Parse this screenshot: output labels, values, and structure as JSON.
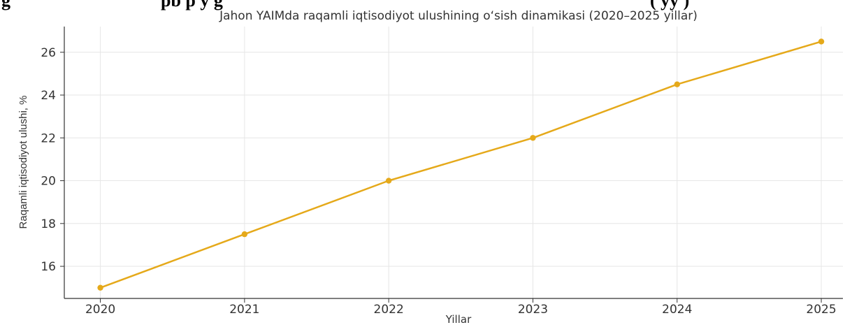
{
  "page_heading": {
    "left_text": "g",
    "middle_text": "pb p y g",
    "right_text": "( yy )"
  },
  "chart_data": {
    "type": "line",
    "title": "Jahon YAIMda raqamli iqtisodiyot ulushining o‘sish dinamikasi (2020–2025 yillar)",
    "xlabel": "Yillar",
    "ylabel": "Raqamli iqtisodiyot ulushi, %",
    "x": [
      2020,
      2021,
      2022,
      2023,
      2024,
      2025
    ],
    "x_tick_labels": [
      "2020",
      "2021",
      "2022",
      "2023",
      "2024",
      "2025"
    ],
    "y_ticks": [
      16,
      18,
      20,
      22,
      24,
      26
    ],
    "y_tick_labels": [
      "16",
      "18",
      "20",
      "22",
      "24",
      "26"
    ],
    "xlim": [
      2019.75,
      2025.15
    ],
    "ylim": [
      14.5,
      27.2
    ],
    "grid": true,
    "series": [
      {
        "values": [
          15.0,
          17.5,
          20.0,
          22.0,
          24.5,
          26.5
        ],
        "color": "#e5a91a"
      }
    ]
  }
}
